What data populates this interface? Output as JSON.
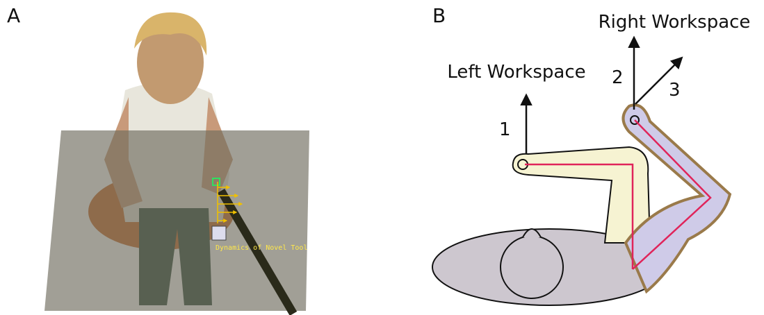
{
  "panels": [
    {
      "label": "A",
      "annotation": "Dynamics of Novel Tool"
    },
    {
      "label": "B",
      "left_label": "Left Workspace",
      "right_label": "Right Workspace",
      "directions": [
        "1",
        "2",
        "3"
      ]
    }
  ]
}
